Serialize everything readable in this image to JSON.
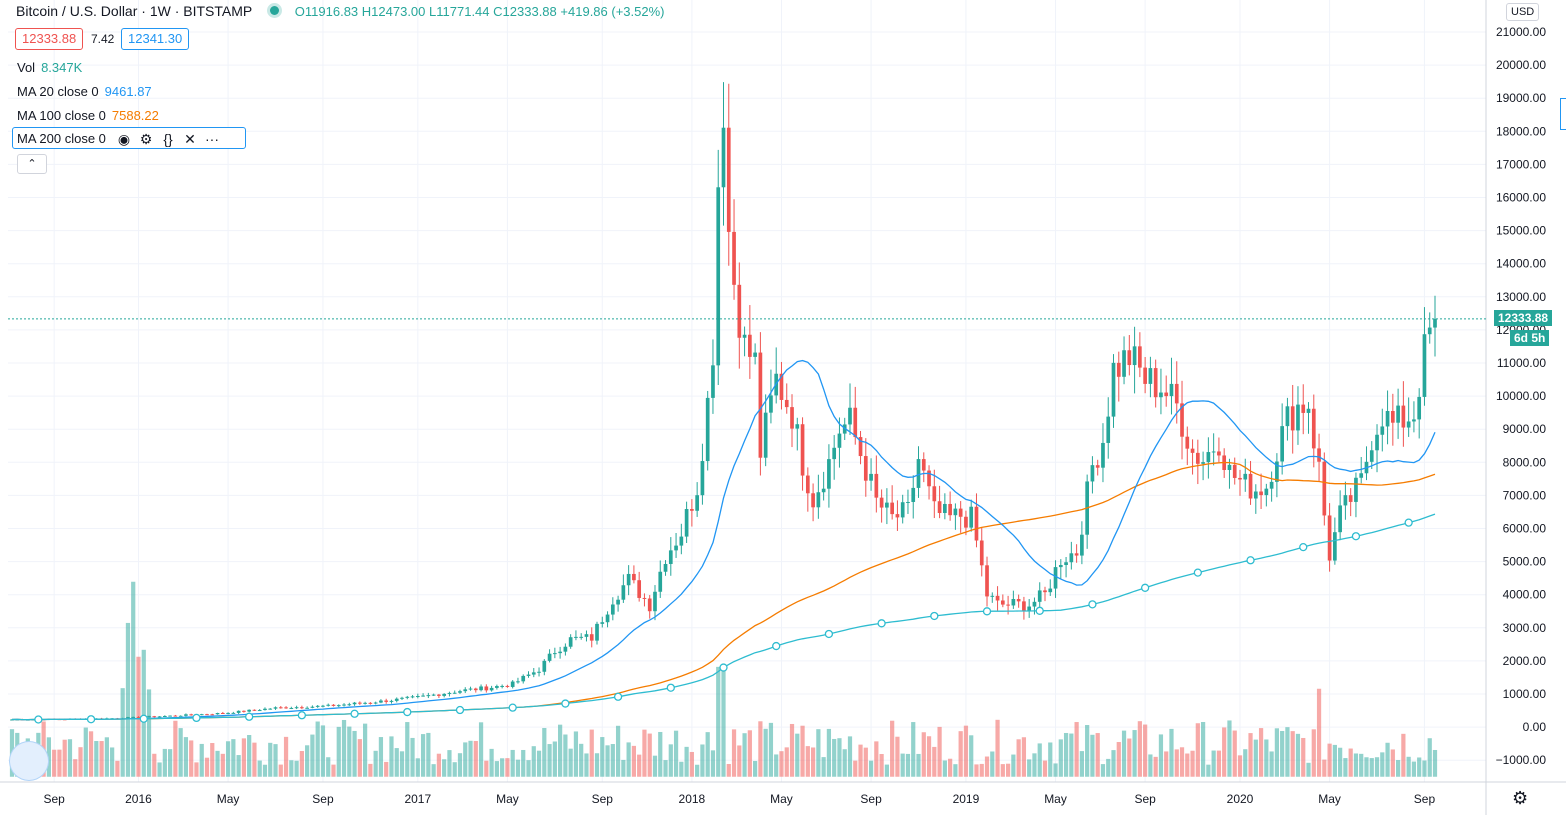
{
  "legend": {
    "symbol": "Bitcoin / U.S. Dollar",
    "interval": "1W",
    "exchange": "BITSTAMP",
    "open": "O11916.83",
    "high": "H12473.00",
    "low": "L11771.44",
    "close": "C12333.88",
    "change": "+419.86 (+3.52%)"
  },
  "bid": "12333.88",
  "spread": "7.42",
  "ask": "12341.30",
  "indicators": {
    "vol": {
      "label": "Vol",
      "value": "8.347K"
    },
    "ma20": {
      "label": "MA 20 close 0",
      "value": "9461.87"
    },
    "ma100": {
      "label": "MA 100 close 0",
      "value": "7588.22"
    },
    "ma200": {
      "label": "MA 200 close 0"
    }
  },
  "icons": [
    "eye-icon",
    "gear-icon",
    "braces-icon",
    "close-icon",
    "more-icon",
    "chevron-up-icon",
    "settings-gear-icon"
  ],
  "currency": "USD",
  "last_price_tag": "12333.88",
  "countdown_tag": "6d 5h",
  "colors": {
    "up": "#26a69a",
    "down": "#ef5350",
    "ma20": "#2196f3",
    "ma100": "#f57c00",
    "ma200": "#2ebcd0",
    "grid": "#f0f3fa"
  },
  "chart_data": {
    "type": "candlestick",
    "title": "Bitcoin / U.S. Dollar, 1W, BITSTAMP",
    "y_ticks": [
      21000,
      20000,
      19000,
      18000,
      17000,
      16000,
      15000,
      14000,
      13000,
      12000,
      11000,
      10000,
      9000,
      8000,
      7000,
      6000,
      5000,
      4000,
      3000,
      2000,
      1000,
      0,
      -1000
    ],
    "y_tick_labels": [
      "21000.00",
      "20000.00",
      "19000.00",
      "18000.00",
      "17000.00",
      "16000.00",
      "15000.00",
      "14000.00",
      "13000.00",
      "12000.00",
      "11000.00",
      "10000.00",
      "9000.00",
      "8000.00",
      "7000.00",
      "6000.00",
      "5000.00",
      "4000.00",
      "3000.00",
      "2000.00",
      "1000.00",
      "0.00",
      "−1000.00"
    ],
    "ylim": [
      -1500,
      21700
    ],
    "x_labels": [
      "Sep",
      "2016",
      "May",
      "Sep",
      "2017",
      "May",
      "Sep",
      "2018",
      "May",
      "Sep",
      "2019",
      "May",
      "Sep",
      "2020",
      "May",
      "Sep"
    ],
    "x_label_weeks": [
      8,
      24,
      41,
      59,
      77,
      94,
      112,
      129,
      146,
      163,
      181,
      198,
      215,
      233,
      250,
      268
    ],
    "weeks": 270,
    "price_anchors": [
      [
        0,
        230
      ],
      [
        10,
        240
      ],
      [
        20,
        270
      ],
      [
        30,
        340
      ],
      [
        40,
        420
      ],
      [
        50,
        580
      ],
      [
        60,
        640
      ],
      [
        70,
        780
      ],
      [
        77,
        900
      ],
      [
        85,
        1100
      ],
      [
        90,
        1180
      ],
      [
        95,
        1300
      ],
      [
        100,
        1750
      ],
      [
        103,
        2300
      ],
      [
        106,
        2650
      ],
      [
        110,
        2700
      ],
      [
        114,
        3900
      ],
      [
        117,
        4450
      ],
      [
        121,
        3700
      ],
      [
        124,
        5200
      ],
      [
        127,
        5900
      ],
      [
        130,
        7300
      ],
      [
        132,
        9800
      ],
      [
        133,
        11500
      ],
      [
        134,
        16500
      ],
      [
        135,
        19000
      ],
      [
        136,
        15000
      ],
      [
        137,
        13500
      ],
      [
        139,
        11500
      ],
      [
        141,
        11000
      ],
      [
        142,
        8300
      ],
      [
        145,
        10500
      ],
      [
        148,
        9500
      ],
      [
        150,
        8000
      ],
      [
        152,
        6900
      ],
      [
        155,
        8000
      ],
      [
        157,
        9000
      ],
      [
        159,
        9200
      ],
      [
        162,
        7800
      ],
      [
        164,
        6800
      ],
      [
        167,
        6300
      ],
      [
        170,
        6500
      ],
      [
        172,
        8100
      ],
      [
        175,
        6500
      ],
      [
        178,
        6300
      ],
      [
        180,
        6400
      ],
      [
        182,
        6300
      ],
      [
        183,
        5600
      ],
      [
        185,
        4000
      ],
      [
        187,
        3700
      ],
      [
        190,
        3700
      ],
      [
        193,
        3700
      ],
      [
        196,
        4000
      ],
      [
        199,
        5100
      ],
      [
        202,
        5300
      ],
      [
        205,
        7900
      ],
      [
        207,
        8700
      ],
      [
        209,
        10800
      ],
      [
        212,
        11200
      ],
      [
        215,
        10500
      ],
      [
        218,
        10300
      ],
      [
        221,
        9700
      ],
      [
        224,
        8300
      ],
      [
        226,
        8100
      ],
      [
        229,
        8700
      ],
      [
        231,
        7700
      ],
      [
        234,
        7300
      ],
      [
        236,
        7200
      ],
      [
        238,
        7300
      ],
      [
        240,
        8400
      ],
      [
        242,
        9300
      ],
      [
        244,
        9700
      ],
      [
        246,
        9800
      ],
      [
        247,
        8700
      ],
      [
        248,
        7800
      ],
      [
        249,
        6400
      ],
      [
        250,
        5200
      ],
      [
        252,
        6400
      ],
      [
        254,
        6900
      ],
      [
        256,
        7400
      ],
      [
        258,
        8800
      ],
      [
        260,
        9500
      ],
      [
        262,
        9100
      ],
      [
        264,
        9300
      ],
      [
        266,
        9500
      ],
      [
        268,
        11300
      ],
      [
        269,
        11900
      ],
      [
        270,
        12333
      ]
    ],
    "ma_series": [
      {
        "name": "MA 20 close 0",
        "value": "9461.87"
      },
      {
        "name": "MA 100 close 0",
        "value": "7588.22"
      },
      {
        "name": "MA 200 close 0",
        "value": ""
      }
    ]
  }
}
